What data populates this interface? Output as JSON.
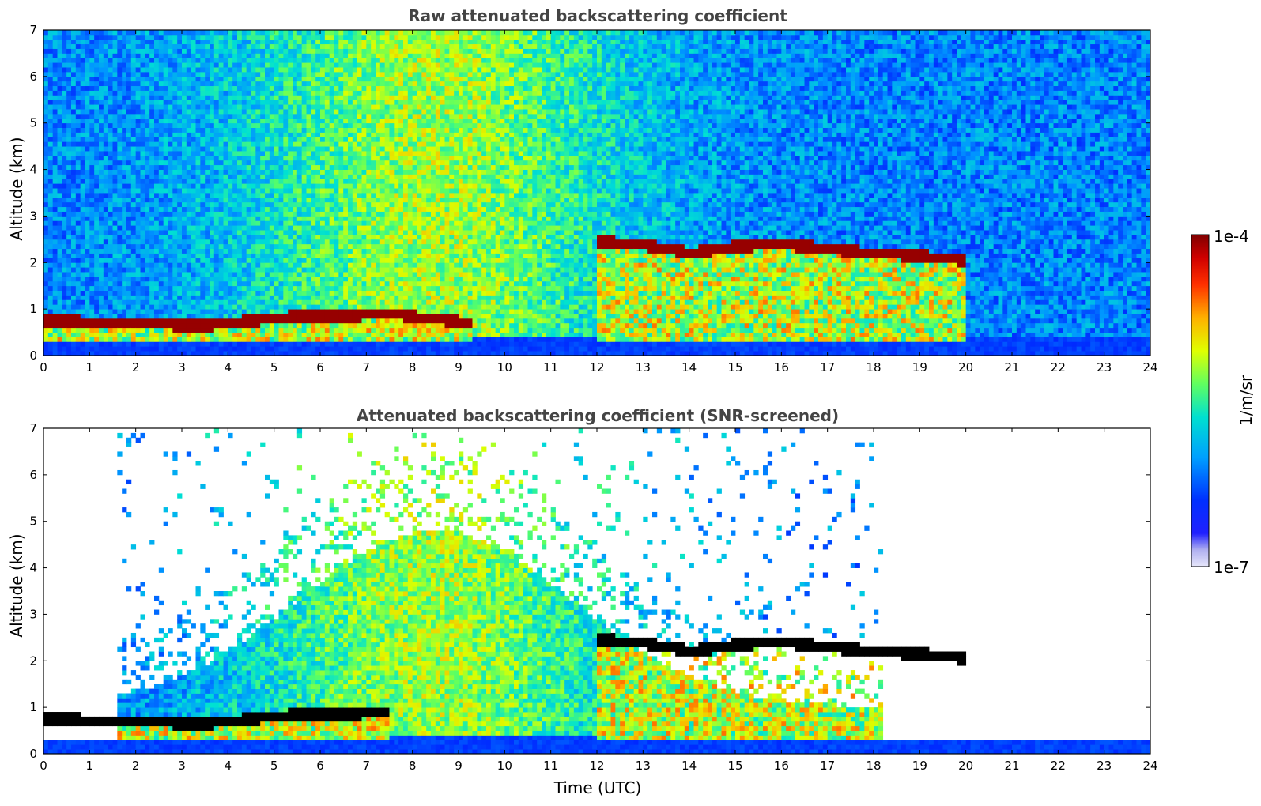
{
  "chart_data": [
    {
      "type": "heatmap",
      "title": "Raw attenuated backscattering coefficient",
      "xlabel": "",
      "ylabel": "Altitude (km)",
      "xlim": [
        0,
        24
      ],
      "ylim": [
        0,
        7
      ],
      "xticks": [
        "0",
        "1",
        "2",
        "3",
        "4",
        "5",
        "6",
        "7",
        "8",
        "9",
        "10",
        "11",
        "12",
        "13",
        "14",
        "15",
        "16",
        "17",
        "18",
        "19",
        "20",
        "21",
        "22",
        "23",
        "24"
      ],
      "yticks": [
        "0",
        "1",
        "2",
        "3",
        "4",
        "5",
        "6",
        "7"
      ],
      "screened": false,
      "cloud_layer_km": [
        {
          "x": 2.5,
          "y": 0.68
        },
        {
          "x": 3.5,
          "y": 0.65
        },
        {
          "x": 4.5,
          "y": 0.75
        },
        {
          "x": 5.5,
          "y": 0.85
        },
        {
          "x": 6.5,
          "y": 0.85
        },
        {
          "x": 7.5,
          "y": 0.9
        },
        {
          "x": 9.3,
          "y": 0.7
        },
        {
          "x": 12.0,
          "y": 2.45
        },
        {
          "x": 13.0,
          "y": 2.4
        },
        {
          "x": 14.0,
          "y": 2.2
        },
        {
          "x": 15.0,
          "y": 2.35
        },
        {
          "x": 16.0,
          "y": 2.4
        },
        {
          "x": 17.0,
          "y": 2.3
        },
        {
          "x": 18.0,
          "y": 2.2
        },
        {
          "x": 19.0,
          "y": 2.15
        },
        {
          "x": 20.0,
          "y": 2.05
        }
      ]
    },
    {
      "type": "heatmap",
      "title": "Attenuated backscattering coefficient (SNR-screened)",
      "xlabel": "Time (UTC)",
      "ylabel": "Altitude (km)",
      "xlim": [
        0,
        24
      ],
      "ylim": [
        0,
        7
      ],
      "xticks": [
        "0",
        "1",
        "2",
        "3",
        "4",
        "5",
        "6",
        "7",
        "8",
        "9",
        "10",
        "11",
        "12",
        "13",
        "14",
        "15",
        "16",
        "17",
        "18",
        "19",
        "20",
        "21",
        "22",
        "23",
        "24"
      ],
      "yticks": [
        "0",
        "1",
        "2",
        "3",
        "4",
        "5",
        "6",
        "7"
      ],
      "screened": true,
      "cloud_layer_km": [
        {
          "x": 2.5,
          "y": 0.68
        },
        {
          "x": 3.5,
          "y": 0.65
        },
        {
          "x": 4.5,
          "y": 0.75
        },
        {
          "x": 5.5,
          "y": 0.85
        },
        {
          "x": 6.5,
          "y": 0.85
        },
        {
          "x": 7.5,
          "y": 0.9
        },
        {
          "x": 12.0,
          "y": 2.45
        },
        {
          "x": 13.0,
          "y": 2.4
        },
        {
          "x": 14.0,
          "y": 2.2
        },
        {
          "x": 15.0,
          "y": 2.35
        },
        {
          "x": 16.0,
          "y": 2.4
        },
        {
          "x": 17.0,
          "y": 2.3
        },
        {
          "x": 18.0,
          "y": 2.2
        },
        {
          "x": 19.0,
          "y": 2.15
        },
        {
          "x": 20.0,
          "y": 2.05
        }
      ]
    }
  ],
  "colorbar": {
    "max_label": "1e-4",
    "min_label": "1e-7",
    "unit_label": "1/m/sr",
    "scale": "log",
    "colors": [
      "#e0e0f8",
      "#b8b8f0",
      "#8080ee",
      "#0000ff",
      "#0050ff",
      "#00a0ff",
      "#00e0e0",
      "#40ff80",
      "#c0ff00",
      "#ffe000",
      "#ff8000",
      "#ff2000",
      "#c00000",
      "#800000"
    ]
  }
}
